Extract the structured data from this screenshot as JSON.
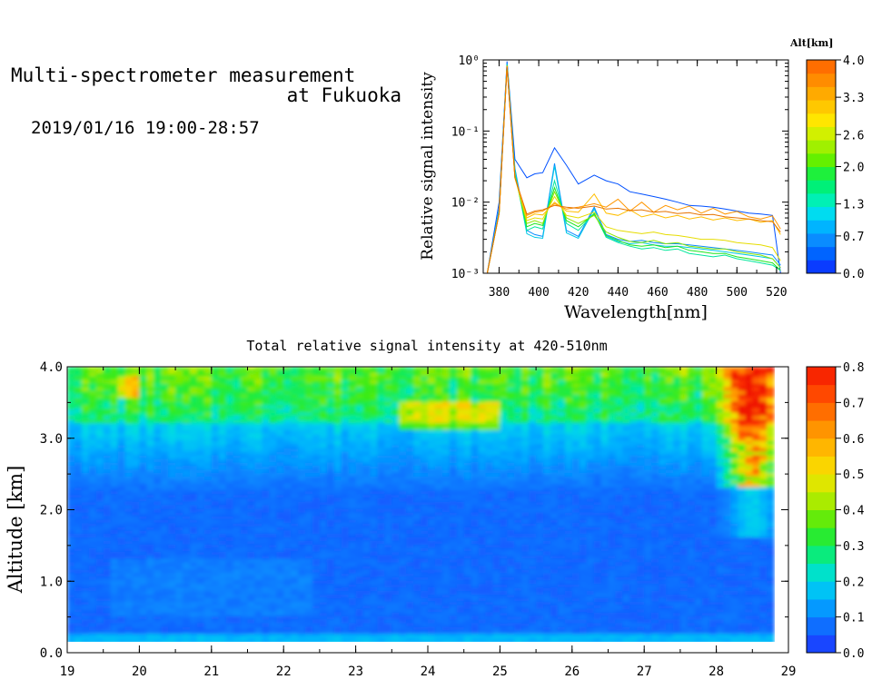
{
  "header": {
    "title_line1": "Multi-spectrometer measurement",
    "title_line2": "at Fukuoka",
    "datetime": "2019/01/16 19:00-28:57"
  },
  "colors": {
    "scale_low": "#1a3cff",
    "scale_high": "#ff2a00"
  },
  "chart_data": [
    {
      "type": "line",
      "title": "",
      "xlabel": "Wavelength[nm]",
      "ylabel": "Relative signal intensity",
      "xlim": [
        372,
        526
      ],
      "ylim_log10": [
        -3,
        0
      ],
      "yscale": "log",
      "x_ticks": [
        380,
        400,
        420,
        440,
        460,
        480,
        500,
        520
      ],
      "y_tick_labels": [
        "10⁻³",
        "10⁻²",
        "10⁻¹",
        "10⁰"
      ],
      "y_tick_exponents": [
        -3,
        -2,
        -1,
        0
      ],
      "x": [
        374,
        380,
        384,
        388,
        394,
        398,
        402,
        408,
        414,
        420,
        428,
        434,
        440,
        446,
        452,
        458,
        464,
        470,
        476,
        482,
        488,
        494,
        500,
        506,
        512,
        518,
        522
      ],
      "series": [
        {
          "alt": 0.0,
          "color": "#0050ff",
          "values": [
            0.001,
            0.01,
            0.95,
            0.04,
            0.022,
            0.025,
            0.026,
            0.058,
            0.033,
            0.018,
            0.024,
            0.02,
            0.018,
            0.014,
            0.013,
            0.012,
            0.011,
            0.01,
            0.009,
            0.0088,
            0.0085,
            0.008,
            0.0075,
            0.007,
            0.0068,
            0.0065,
            0.001
          ]
        },
        {
          "alt": 0.3,
          "color": "#0a8cff",
          "values": [
            0.001,
            0.008,
            0.9,
            0.03,
            0.004,
            0.0035,
            0.0033,
            0.035,
            0.004,
            0.0033,
            0.0085,
            0.0035,
            0.003,
            0.0028,
            0.0029,
            0.0027,
            0.0026,
            0.0026,
            0.0025,
            0.0024,
            0.0023,
            0.0022,
            0.0021,
            0.002,
            0.0019,
            0.0018,
            0.0013
          ]
        },
        {
          "alt": 0.7,
          "color": "#00c8e6",
          "values": [
            0.001,
            0.008,
            0.88,
            0.028,
            0.0036,
            0.0032,
            0.0031,
            0.032,
            0.0037,
            0.0031,
            0.008,
            0.0033,
            0.0028,
            0.0026,
            0.0027,
            0.0025,
            0.0024,
            0.0024,
            0.0023,
            0.0022,
            0.0021,
            0.002,
            0.0019,
            0.0018,
            0.0017,
            0.0016,
            0.0012
          ]
        },
        {
          "alt": 1.3,
          "color": "#00e69b",
          "values": [
            0.001,
            0.007,
            0.85,
            0.025,
            0.004,
            0.0045,
            0.0042,
            0.02,
            0.005,
            0.004,
            0.007,
            0.0032,
            0.0027,
            0.0024,
            0.0022,
            0.0023,
            0.0021,
            0.0022,
            0.0019,
            0.0018,
            0.0017,
            0.0018,
            0.0016,
            0.0015,
            0.0014,
            0.0013,
            0.0011
          ]
        },
        {
          "alt": 1.7,
          "color": "#1ee61e",
          "values": [
            0.001,
            0.007,
            0.84,
            0.024,
            0.0045,
            0.005,
            0.0047,
            0.016,
            0.0055,
            0.0045,
            0.0068,
            0.0034,
            0.0029,
            0.0025,
            0.0024,
            0.0025,
            0.0023,
            0.0024,
            0.0021,
            0.002,
            0.0019,
            0.0019,
            0.0017,
            0.0016,
            0.0015,
            0.0014,
            0.0011
          ]
        },
        {
          "alt": 2.2,
          "color": "#8ce600",
          "values": [
            0.001,
            0.007,
            0.83,
            0.023,
            0.005,
            0.0055,
            0.005,
            0.014,
            0.006,
            0.005,
            0.0065,
            0.0038,
            0.0032,
            0.0028,
            0.0027,
            0.0029,
            0.0026,
            0.0027,
            0.0024,
            0.0023,
            0.0022,
            0.0022,
            0.002,
            0.0019,
            0.0018,
            0.0016,
            0.0012
          ]
        },
        {
          "alt": 2.8,
          "color": "#e6dc00",
          "values": [
            0.001,
            0.007,
            0.82,
            0.022,
            0.0055,
            0.006,
            0.0058,
            0.012,
            0.0065,
            0.006,
            0.0072,
            0.0045,
            0.004,
            0.0038,
            0.0036,
            0.0038,
            0.0035,
            0.0034,
            0.0032,
            0.003,
            0.003,
            0.0029,
            0.0027,
            0.0026,
            0.0025,
            0.0023,
            0.0015
          ]
        },
        {
          "alt": 3.1,
          "color": "#ffbe00",
          "values": [
            0.001,
            0.007,
            0.82,
            0.022,
            0.006,
            0.0068,
            0.0066,
            0.01,
            0.0075,
            0.0072,
            0.013,
            0.007,
            0.0065,
            0.0078,
            0.0062,
            0.0068,
            0.006,
            0.0065,
            0.0058,
            0.0062,
            0.0056,
            0.006,
            0.0055,
            0.0058,
            0.0052,
            0.0055,
            0.0035
          ]
        },
        {
          "alt": 3.4,
          "color": "#ff9600",
          "values": [
            0.001,
            0.007,
            0.81,
            0.022,
            0.0065,
            0.0072,
            0.0075,
            0.0095,
            0.008,
            0.0085,
            0.0095,
            0.0085,
            0.011,
            0.0075,
            0.01,
            0.0072,
            0.009,
            0.0078,
            0.0088,
            0.007,
            0.0082,
            0.0068,
            0.0074,
            0.0062,
            0.0058,
            0.0064,
            0.0042
          ]
        },
        {
          "alt": 3.8,
          "color": "#e67300",
          "values": [
            0.001,
            0.007,
            0.8,
            0.022,
            0.0068,
            0.0075,
            0.0078,
            0.009,
            0.0085,
            0.0082,
            0.0088,
            0.008,
            0.0082,
            0.0076,
            0.0078,
            0.0072,
            0.0074,
            0.0069,
            0.0071,
            0.0066,
            0.0067,
            0.0062,
            0.006,
            0.0058,
            0.0055,
            0.0053,
            0.0038
          ]
        }
      ]
    },
    {
      "type": "heatmap",
      "title": "Total relative signal intensity at 420-510nm",
      "xlabel": "",
      "ylabel": "Altitude [km]",
      "xlim": [
        19,
        29
      ],
      "ylim": [
        0,
        4
      ],
      "x_ticks": [
        19,
        20,
        21,
        22,
        23,
        24,
        25,
        26,
        27,
        28,
        29
      ],
      "y_ticks": [
        "0.0",
        "1.0",
        "2.0",
        "3.0",
        "4.0"
      ],
      "y_tick_values": [
        0,
        1,
        2,
        3,
        4
      ],
      "colorbar_ticks": [
        "0.0",
        "0.1",
        "0.2",
        "0.3",
        "0.4",
        "0.5",
        "0.6",
        "0.7",
        "0.8"
      ],
      "data_xlim": [
        19,
        28.8
      ],
      "data_ylim": [
        0.12,
        4.0
      ]
    }
  ],
  "alt_colorbar": {
    "title": "Alt[km]",
    "ticks": [
      "0.0",
      "0.7",
      "1.3",
      "2.0",
      "2.6",
      "3.3",
      "4.0"
    ],
    "tick_values": [
      0.0,
      0.7,
      1.3,
      2.0,
      2.6,
      3.3,
      4.0
    ],
    "range": [
      0,
      4
    ],
    "colors": [
      "#0a3cff",
      "#0064ff",
      "#0a8cff",
      "#00b4ff",
      "#00dcf0",
      "#00f0b4",
      "#00f078",
      "#1ef03c",
      "#64f000",
      "#a0f000",
      "#d2f000",
      "#ffe600",
      "#ffc800",
      "#ffaa00",
      "#ff8c00",
      "#ff6e00"
    ]
  }
}
